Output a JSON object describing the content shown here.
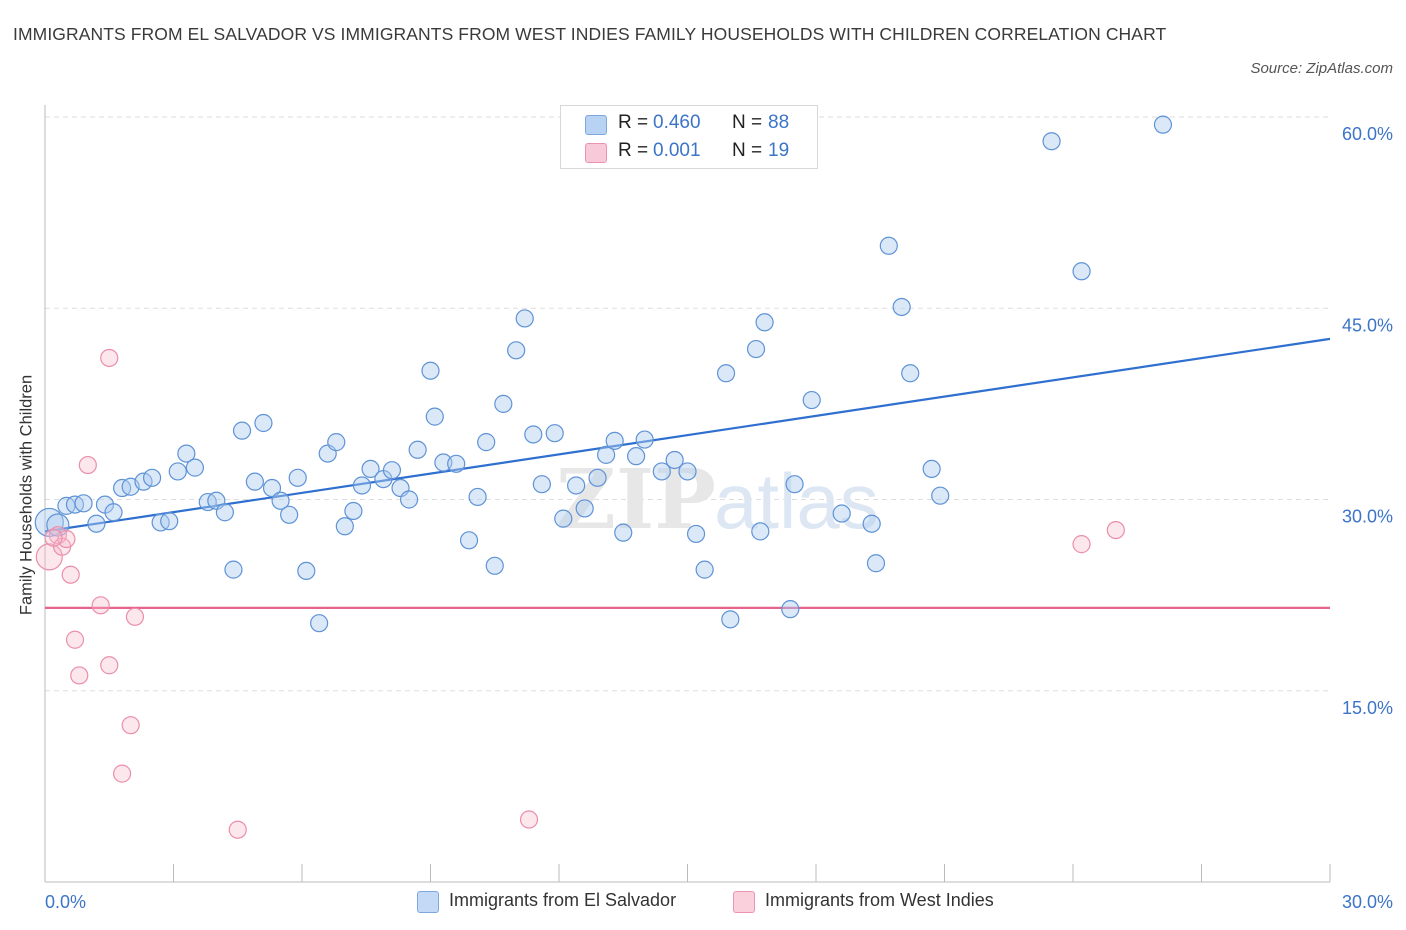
{
  "title": "IMMIGRANTS FROM EL SALVADOR VS IMMIGRANTS FROM WEST INDIES FAMILY HOUSEHOLDS WITH CHILDREN CORRELATION CHART",
  "source": "Source: ZipAtlas.com",
  "watermark": {
    "zip": "ZIP",
    "atlas": "atlas"
  },
  "legend": {
    "series1": {
      "r_label": "R =",
      "r_value": "0.460",
      "n_label": "N =",
      "n_value": "88"
    },
    "series2": {
      "r_label": "R =",
      "r_value": "0.001",
      "n_label": "N =",
      "n_value": "19"
    }
  },
  "colors": {
    "blue": "#3c74c8",
    "blue_fill": "#aecbf0",
    "pink": "#e8638c",
    "pink_fill": "#f5b9cc",
    "grid": "#dddddd",
    "axis_text": "#3c74c8"
  },
  "chart_data": {
    "type": "scatter",
    "title": "IMMIGRANTS FROM EL SALVADOR VS IMMIGRANTS FROM WEST INDIES FAMILY HOUSEHOLDS WITH CHILDREN CORRELATION CHART",
    "xlabel": "",
    "ylabel": "Family Households with Children",
    "xlim": [
      0,
      30
    ],
    "ylim": [
      0,
      60
    ],
    "x_tick_labels": [
      "0.0%",
      "30.0%"
    ],
    "y_ticks": [
      15,
      30,
      45,
      60
    ],
    "y_tick_labels": [
      "15.0%",
      "30.0%",
      "45.0%",
      "60.0%"
    ],
    "grid": true,
    "legend_position": "top-center",
    "series": [
      {
        "name": "Immigrants from El Salvador",
        "color": "#3c74c8",
        "trendline": {
          "x": [
            0,
            30
          ],
          "y": [
            27.5,
            42.6
          ]
        },
        "points": [
          [
            0.1,
            28.2
          ],
          [
            0.3,
            28.0
          ],
          [
            0.5,
            29.5
          ],
          [
            0.7,
            29.6
          ],
          [
            0.9,
            29.7
          ],
          [
            1.2,
            28.1
          ],
          [
            1.4,
            29.6
          ],
          [
            1.6,
            29.0
          ],
          [
            1.8,
            30.9
          ],
          [
            2.0,
            31.0
          ],
          [
            2.3,
            31.4
          ],
          [
            2.5,
            31.7
          ],
          [
            2.7,
            28.2
          ],
          [
            2.9,
            28.3
          ],
          [
            3.1,
            32.2
          ],
          [
            3.3,
            33.6
          ],
          [
            3.5,
            32.5
          ],
          [
            3.8,
            29.8
          ],
          [
            4.0,
            29.9
          ],
          [
            4.2,
            29.0
          ],
          [
            4.4,
            24.5
          ],
          [
            4.6,
            35.4
          ],
          [
            4.9,
            31.4
          ],
          [
            5.1,
            36.0
          ],
          [
            5.3,
            30.9
          ],
          [
            5.5,
            29.9
          ],
          [
            5.7,
            28.8
          ],
          [
            5.9,
            31.7
          ],
          [
            6.1,
            24.4
          ],
          [
            6.4,
            20.3
          ],
          [
            6.6,
            33.6
          ],
          [
            6.8,
            34.5
          ],
          [
            7.0,
            27.9
          ],
          [
            7.2,
            29.1
          ],
          [
            7.4,
            31.1
          ],
          [
            7.6,
            32.4
          ],
          [
            7.9,
            31.6
          ],
          [
            8.1,
            32.3
          ],
          [
            8.3,
            30.9
          ],
          [
            8.5,
            30.0
          ],
          [
            8.7,
            33.9
          ],
          [
            9.0,
            40.1
          ],
          [
            9.1,
            36.5
          ],
          [
            9.3,
            32.9
          ],
          [
            9.6,
            32.8
          ],
          [
            9.9,
            26.8
          ],
          [
            10.1,
            30.2
          ],
          [
            10.3,
            34.5
          ],
          [
            10.5,
            24.8
          ],
          [
            10.7,
            37.5
          ],
          [
            11.0,
            41.7
          ],
          [
            11.2,
            44.2
          ],
          [
            11.4,
            35.1
          ],
          [
            11.6,
            31.2
          ],
          [
            11.9,
            35.2
          ],
          [
            12.1,
            28.5
          ],
          [
            12.4,
            31.1
          ],
          [
            12.6,
            29.3
          ],
          [
            12.9,
            31.7
          ],
          [
            13.1,
            33.5
          ],
          [
            13.3,
            34.6
          ],
          [
            13.5,
            27.4
          ],
          [
            13.8,
            33.4
          ],
          [
            14.0,
            34.7
          ],
          [
            14.4,
            32.2
          ],
          [
            14.7,
            33.1
          ],
          [
            15.0,
            32.2
          ],
          [
            15.2,
            27.3
          ],
          [
            15.4,
            24.5
          ],
          [
            15.9,
            39.9
          ],
          [
            16.0,
            20.6
          ],
          [
            16.6,
            41.8
          ],
          [
            16.7,
            27.5
          ],
          [
            16.8,
            43.9
          ],
          [
            17.4,
            21.4
          ],
          [
            17.5,
            31.2
          ],
          [
            17.9,
            37.8
          ],
          [
            18.6,
            28.9
          ],
          [
            19.3,
            28.1
          ],
          [
            19.4,
            25.0
          ],
          [
            19.7,
            49.9
          ],
          [
            20.0,
            45.1
          ],
          [
            20.2,
            39.9
          ],
          [
            20.7,
            32.4
          ],
          [
            20.9,
            30.3
          ],
          [
            23.5,
            58.1
          ],
          [
            24.2,
            47.9
          ],
          [
            26.1,
            59.4
          ]
        ]
      },
      {
        "name": "Immigrants from West Indies",
        "color": "#e8638c",
        "trendline": {
          "x": [
            0,
            30
          ],
          "y": [
            21.5,
            21.5
          ]
        },
        "points": [
          [
            0.1,
            25.5
          ],
          [
            0.3,
            27.2
          ],
          [
            0.4,
            26.3
          ],
          [
            0.5,
            26.9
          ],
          [
            0.6,
            24.1
          ],
          [
            0.7,
            19.0
          ],
          [
            0.8,
            16.2
          ],
          [
            1.0,
            32.7
          ],
          [
            1.3,
            21.7
          ],
          [
            1.5,
            41.1
          ],
          [
            1.5,
            17.0
          ],
          [
            1.8,
            8.5
          ],
          [
            2.0,
            12.3
          ],
          [
            2.1,
            20.8
          ],
          [
            4.5,
            4.1
          ],
          [
            11.3,
            4.9
          ],
          [
            24.2,
            26.5
          ],
          [
            25.0,
            27.6
          ],
          [
            0.2,
            27.0
          ]
        ]
      }
    ]
  },
  "bottom_legend": [
    "Immigrants from El Salvador",
    "Immigrants from West Indies"
  ]
}
